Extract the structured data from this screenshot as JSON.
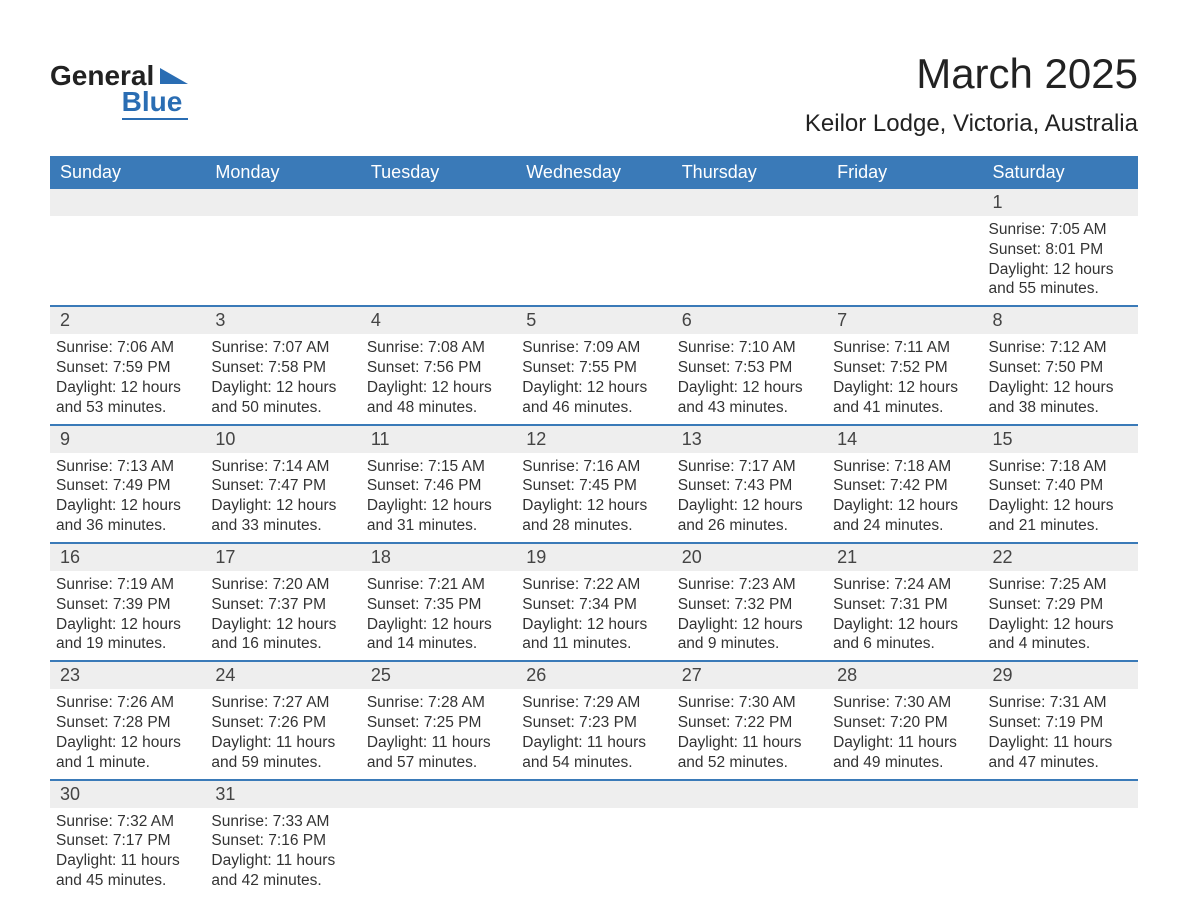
{
  "brand": {
    "top": "General",
    "bottom": "Blue"
  },
  "title": "March 2025",
  "location": "Keilor Lodge, Victoria, Australia",
  "colors": {
    "header_bg": "#3a7ab8",
    "header_text": "#ffffff",
    "daynum_bg": "#eeeeee",
    "row_divider": "#3a7ab8",
    "text": "#333333",
    "brand_accent": "#2a6db3",
    "page_bg": "#ffffff"
  },
  "typography": {
    "title_fontsize": 42,
    "location_fontsize": 24,
    "weekday_fontsize": 18,
    "daynum_fontsize": 18,
    "body_fontsize": 15.5,
    "font_family": "Arial"
  },
  "weekdays": [
    "Sunday",
    "Monday",
    "Tuesday",
    "Wednesday",
    "Thursday",
    "Friday",
    "Saturday"
  ],
  "weeks": [
    [
      null,
      null,
      null,
      null,
      null,
      null,
      {
        "n": "1",
        "sunrise": "7:05 AM",
        "sunset": "8:01 PM",
        "daylight": "12 hours and 55 minutes."
      }
    ],
    [
      {
        "n": "2",
        "sunrise": "7:06 AM",
        "sunset": "7:59 PM",
        "daylight": "12 hours and 53 minutes."
      },
      {
        "n": "3",
        "sunrise": "7:07 AM",
        "sunset": "7:58 PM",
        "daylight": "12 hours and 50 minutes."
      },
      {
        "n": "4",
        "sunrise": "7:08 AM",
        "sunset": "7:56 PM",
        "daylight": "12 hours and 48 minutes."
      },
      {
        "n": "5",
        "sunrise": "7:09 AM",
        "sunset": "7:55 PM",
        "daylight": "12 hours and 46 minutes."
      },
      {
        "n": "6",
        "sunrise": "7:10 AM",
        "sunset": "7:53 PM",
        "daylight": "12 hours and 43 minutes."
      },
      {
        "n": "7",
        "sunrise": "7:11 AM",
        "sunset": "7:52 PM",
        "daylight": "12 hours and 41 minutes."
      },
      {
        "n": "8",
        "sunrise": "7:12 AM",
        "sunset": "7:50 PM",
        "daylight": "12 hours and 38 minutes."
      }
    ],
    [
      {
        "n": "9",
        "sunrise": "7:13 AM",
        "sunset": "7:49 PM",
        "daylight": "12 hours and 36 minutes."
      },
      {
        "n": "10",
        "sunrise": "7:14 AM",
        "sunset": "7:47 PM",
        "daylight": "12 hours and 33 minutes."
      },
      {
        "n": "11",
        "sunrise": "7:15 AM",
        "sunset": "7:46 PM",
        "daylight": "12 hours and 31 minutes."
      },
      {
        "n": "12",
        "sunrise": "7:16 AM",
        "sunset": "7:45 PM",
        "daylight": "12 hours and 28 minutes."
      },
      {
        "n": "13",
        "sunrise": "7:17 AM",
        "sunset": "7:43 PM",
        "daylight": "12 hours and 26 minutes."
      },
      {
        "n": "14",
        "sunrise": "7:18 AM",
        "sunset": "7:42 PM",
        "daylight": "12 hours and 24 minutes."
      },
      {
        "n": "15",
        "sunrise": "7:18 AM",
        "sunset": "7:40 PM",
        "daylight": "12 hours and 21 minutes."
      }
    ],
    [
      {
        "n": "16",
        "sunrise": "7:19 AM",
        "sunset": "7:39 PM",
        "daylight": "12 hours and 19 minutes."
      },
      {
        "n": "17",
        "sunrise": "7:20 AM",
        "sunset": "7:37 PM",
        "daylight": "12 hours and 16 minutes."
      },
      {
        "n": "18",
        "sunrise": "7:21 AM",
        "sunset": "7:35 PM",
        "daylight": "12 hours and 14 minutes."
      },
      {
        "n": "19",
        "sunrise": "7:22 AM",
        "sunset": "7:34 PM",
        "daylight": "12 hours and 11 minutes."
      },
      {
        "n": "20",
        "sunrise": "7:23 AM",
        "sunset": "7:32 PM",
        "daylight": "12 hours and 9 minutes."
      },
      {
        "n": "21",
        "sunrise": "7:24 AM",
        "sunset": "7:31 PM",
        "daylight": "12 hours and 6 minutes."
      },
      {
        "n": "22",
        "sunrise": "7:25 AM",
        "sunset": "7:29 PM",
        "daylight": "12 hours and 4 minutes."
      }
    ],
    [
      {
        "n": "23",
        "sunrise": "7:26 AM",
        "sunset": "7:28 PM",
        "daylight": "12 hours and 1 minute."
      },
      {
        "n": "24",
        "sunrise": "7:27 AM",
        "sunset": "7:26 PM",
        "daylight": "11 hours and 59 minutes."
      },
      {
        "n": "25",
        "sunrise": "7:28 AM",
        "sunset": "7:25 PM",
        "daylight": "11 hours and 57 minutes."
      },
      {
        "n": "26",
        "sunrise": "7:29 AM",
        "sunset": "7:23 PM",
        "daylight": "11 hours and 54 minutes."
      },
      {
        "n": "27",
        "sunrise": "7:30 AM",
        "sunset": "7:22 PM",
        "daylight": "11 hours and 52 minutes."
      },
      {
        "n": "28",
        "sunrise": "7:30 AM",
        "sunset": "7:20 PM",
        "daylight": "11 hours and 49 minutes."
      },
      {
        "n": "29",
        "sunrise": "7:31 AM",
        "sunset": "7:19 PM",
        "daylight": "11 hours and 47 minutes."
      }
    ],
    [
      {
        "n": "30",
        "sunrise": "7:32 AM",
        "sunset": "7:17 PM",
        "daylight": "11 hours and 45 minutes."
      },
      {
        "n": "31",
        "sunrise": "7:33 AM",
        "sunset": "7:16 PM",
        "daylight": "11 hours and 42 minutes."
      },
      null,
      null,
      null,
      null,
      null
    ]
  ],
  "labels": {
    "sunrise": "Sunrise: ",
    "sunset": "Sunset: ",
    "daylight": "Daylight: "
  }
}
